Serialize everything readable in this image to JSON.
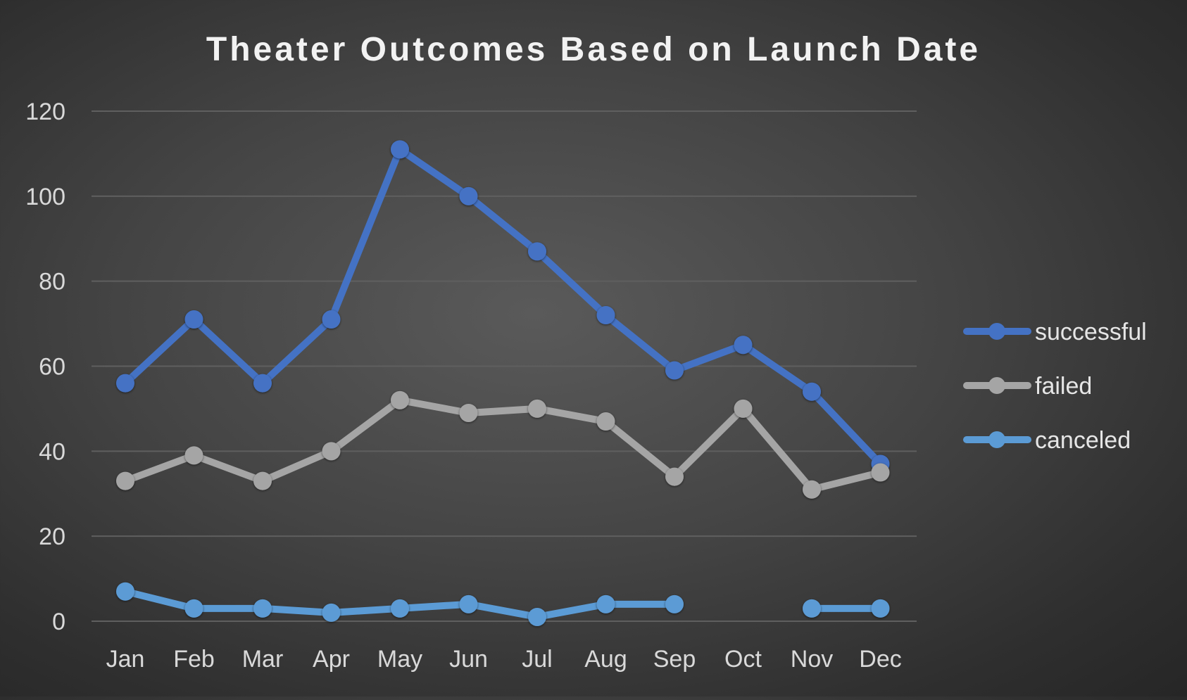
{
  "chart_data": {
    "type": "line",
    "title": "Theater Outcomes Based on Launch Date",
    "xlabel": "",
    "ylabel": "",
    "categories": [
      "Jan",
      "Feb",
      "Mar",
      "Apr",
      "May",
      "Jun",
      "Jul",
      "Aug",
      "Sep",
      "Oct",
      "Nov",
      "Dec"
    ],
    "ylim": [
      0,
      120
    ],
    "yticks": [
      0,
      20,
      40,
      60,
      80,
      100,
      120
    ],
    "grid": true,
    "legend_position": "right",
    "series": [
      {
        "name": "successful",
        "color": "#4472c4",
        "values": [
          56,
          71,
          56,
          71,
          111,
          100,
          87,
          72,
          59,
          65,
          54,
          37
        ]
      },
      {
        "name": "failed",
        "color": "#a5a5a5",
        "values": [
          33,
          39,
          33,
          40,
          52,
          49,
          50,
          47,
          34,
          50,
          31,
          35
        ]
      },
      {
        "name": "canceled",
        "color": "#5b9bd5",
        "values": [
          7,
          3,
          3,
          2,
          3,
          4,
          1,
          4,
          4,
          null,
          3,
          3
        ]
      }
    ]
  }
}
